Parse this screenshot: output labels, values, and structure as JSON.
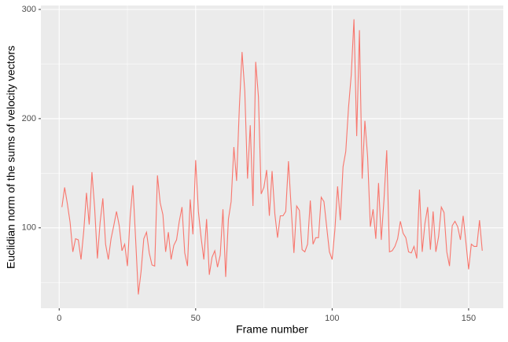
{
  "chart_data": {
    "type": "line",
    "xlabel": "Frame number",
    "ylabel": "Euclidian norm of the sums of velocity vectors",
    "x": [
      1,
      2,
      3,
      4,
      5,
      6,
      7,
      8,
      9,
      10,
      11,
      12,
      13,
      14,
      15,
      16,
      17,
      18,
      19,
      20,
      21,
      22,
      23,
      24,
      25,
      26,
      27,
      28,
      29,
      30,
      31,
      32,
      33,
      34,
      35,
      36,
      37,
      38,
      39,
      40,
      41,
      42,
      43,
      44,
      45,
      46,
      47,
      48,
      49,
      50,
      51,
      52,
      53,
      54,
      55,
      56,
      57,
      58,
      59,
      60,
      61,
      62,
      63,
      64,
      65,
      66,
      67,
      68,
      69,
      70,
      71,
      72,
      73,
      74,
      75,
      76,
      77,
      78,
      79,
      80,
      81,
      82,
      83,
      84,
      85,
      86,
      87,
      88,
      89,
      90,
      91,
      92,
      93,
      94,
      95,
      96,
      97,
      98,
      99,
      100,
      101,
      102,
      103,
      104,
      105,
      106,
      107,
      108,
      109,
      110,
      111,
      112,
      113,
      114,
      115,
      116,
      117,
      118,
      119,
      120,
      121,
      122,
      123,
      124,
      125,
      126,
      127,
      128,
      129,
      130,
      131,
      132,
      133,
      134,
      135,
      136,
      137,
      138,
      139,
      140,
      141,
      142,
      143,
      144,
      145,
      146,
      147,
      148,
      149,
      150,
      151,
      152,
      153,
      154,
      155
    ],
    "series": [
      {
        "color": "#F8766D",
        "values": [
          119,
          137,
          122,
          105,
          78,
          90,
          89,
          71,
          97,
          132,
          103,
          151,
          118,
          72,
          105,
          127,
          85,
          71,
          90,
          102,
          115,
          102,
          79,
          85,
          65,
          110,
          139,
          90,
          39,
          60,
          90,
          96,
          77,
          66,
          65,
          148,
          123,
          112,
          78,
          96,
          71,
          84,
          89,
          106,
          119,
          77,
          65,
          126,
          94,
          162,
          115,
          91,
          71,
          108,
          57,
          73,
          79,
          64,
          75,
          117,
          55,
          108,
          124,
          174,
          143,
          210,
          261,
          225,
          145,
          194,
          120,
          252,
          220,
          131,
          137,
          153,
          111,
          152,
          113,
          91,
          111,
          111,
          115,
          161,
          118,
          77,
          120,
          116,
          80,
          78,
          85,
          125,
          85,
          91,
          91,
          128,
          124,
          101,
          78,
          71,
          98,
          138,
          107,
          156,
          170,
          210,
          240,
          291,
          184,
          281,
          145,
          198,
          165,
          101,
          117,
          90,
          141,
          89,
          126,
          171,
          78,
          79,
          83,
          90,
          106,
          95,
          91,
          78,
          77,
          83,
          72,
          135,
          78,
          104,
          119,
          80,
          115,
          78,
          92,
          119,
          114,
          78,
          65,
          102,
          106,
          101,
          89,
          111,
          87,
          62,
          85,
          83,
          83,
          107,
          79
        ]
      }
    ],
    "xlim": [
      -6.7,
      162.7
    ],
    "xticks": [
      0,
      50,
      100,
      150
    ],
    "minor_xticks": [
      25,
      75,
      125
    ],
    "ylim": [
      26.4,
      303.6
    ],
    "yticks": [
      100,
      200,
      300
    ],
    "minor_yticks": [
      50,
      150,
      250
    ],
    "grid": true
  }
}
